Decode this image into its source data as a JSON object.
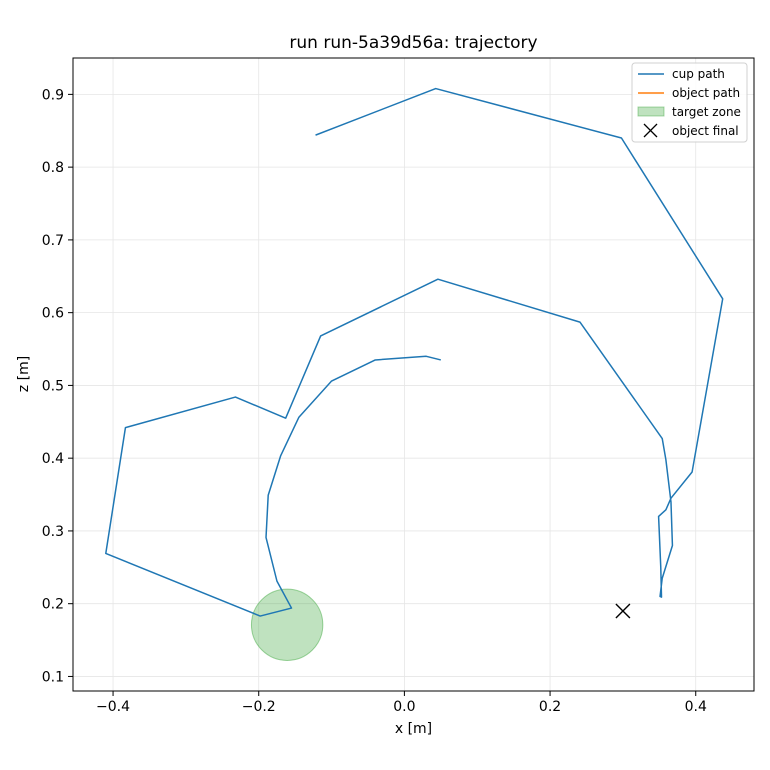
{
  "chart_data": {
    "type": "line",
    "title": "run run-5a39d56a: trajectory",
    "xlabel": "x [m]",
    "ylabel": "z [m]",
    "xlim": [
      -0.455,
      0.48
    ],
    "ylim": [
      0.08,
      0.95
    ],
    "xticks": [
      -0.4,
      -0.2,
      0.0,
      0.2,
      0.4
    ],
    "xtick_labels": [
      "−0.4",
      "−0.2",
      "0.0",
      "0.2",
      "0.4"
    ],
    "yticks": [
      0.1,
      0.2,
      0.3,
      0.4,
      0.5,
      0.6,
      0.7,
      0.8,
      0.9
    ],
    "ytick_labels": [
      "0.1",
      "0.2",
      "0.3",
      "0.4",
      "0.5",
      "0.6",
      "0.7",
      "0.8",
      "0.9"
    ],
    "grid": true,
    "legend_position": "top-right",
    "legend": [
      {
        "label": "cup path",
        "kind": "line",
        "color": "#1f77b4"
      },
      {
        "label": "object path",
        "kind": "line",
        "color": "#ff7f0e"
      },
      {
        "label": "target zone",
        "kind": "patch",
        "color": "#2ca02c"
      },
      {
        "label": "object final",
        "kind": "marker",
        "color": "#000000"
      }
    ],
    "series": [
      {
        "name": "cup path",
        "color": "#1f77b4",
        "x": [
          0.05,
          0.03,
          -0.04,
          -0.1,
          -0.145,
          -0.17,
          -0.187,
          -0.19,
          -0.175,
          -0.155,
          -0.198,
          -0.41,
          -0.383,
          -0.232,
          -0.163,
          -0.115,
          0.046,
          0.241,
          0.354,
          0.359,
          0.366,
          0.368,
          0.354,
          0.351,
          0.353,
          0.352,
          0.349,
          0.359,
          0.366,
          0.395,
          0.437,
          0.298,
          0.043,
          -0.122
        ],
        "y": [
          0.535,
          0.54,
          0.535,
          0.506,
          0.456,
          0.403,
          0.349,
          0.291,
          0.231,
          0.194,
          0.183,
          0.269,
          0.442,
          0.484,
          0.455,
          0.568,
          0.646,
          0.587,
          0.427,
          0.398,
          0.34,
          0.28,
          0.235,
          0.21,
          0.209,
          0.25,
          0.32,
          0.329,
          0.345,
          0.381,
          0.619,
          0.84,
          0.908,
          0.844
        ]
      }
    ],
    "target_zone": {
      "x": -0.161,
      "y": 0.171,
      "radius": 0.049,
      "color": "#2ca02c"
    },
    "object_final": {
      "x": 0.3,
      "y": 0.19,
      "color": "#000000"
    }
  }
}
